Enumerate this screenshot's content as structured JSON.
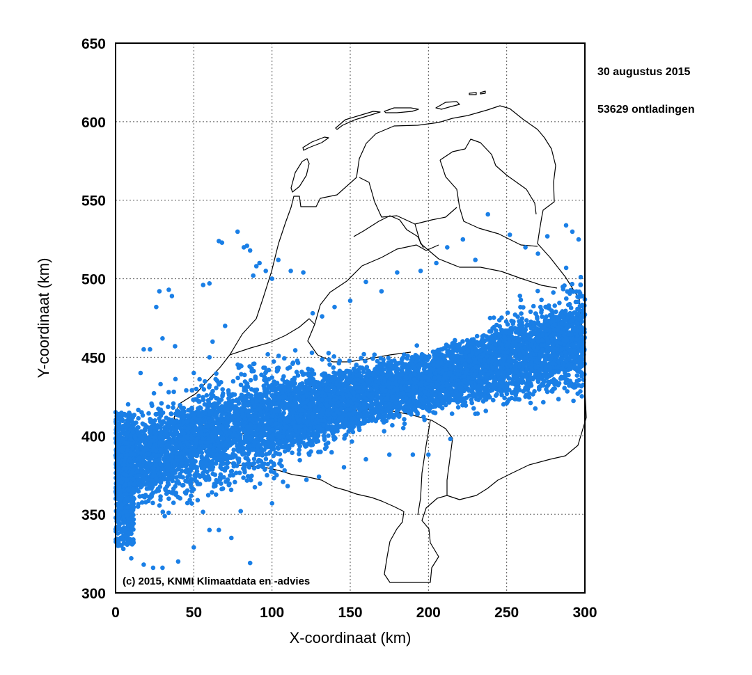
{
  "chart_data": {
    "type": "scatter",
    "title": "",
    "xlabel": "X-coordinaat (km)",
    "ylabel": "Y-coordinaat (km)",
    "xlim": [
      0,
      300
    ],
    "ylim": [
      300,
      650
    ],
    "xticks": [
      "0",
      "50",
      "100",
      "150",
      "200",
      "250",
      "300"
    ],
    "yticks": [
      "300",
      "350",
      "400",
      "450",
      "500",
      "550",
      "600",
      "650"
    ],
    "grid": true,
    "annotations": {
      "date": "30 augustus 2015",
      "count": "53629 ontladingen",
      "credit": "(c) 2015, KNMI Klimaatdata en -advies"
    },
    "series": [
      {
        "color": "#1a7fe6",
        "band_center_line": [
          [
            0,
            380
          ],
          [
            100,
            412
          ],
          [
            200,
            435
          ],
          [
            300,
            463
          ]
        ],
        "band_half_width": 28,
        "points": [
          [
            28,
            492
          ],
          [
            26,
            482
          ],
          [
            34,
            493
          ],
          [
            36,
            489
          ],
          [
            30,
            462
          ],
          [
            38,
            457
          ],
          [
            56,
            496
          ],
          [
            60,
            497
          ],
          [
            66,
            524
          ],
          [
            68,
            523
          ],
          [
            78,
            530
          ],
          [
            82,
            520
          ],
          [
            84,
            521
          ],
          [
            86,
            518
          ],
          [
            90,
            508
          ],
          [
            92,
            510
          ],
          [
            88,
            502
          ],
          [
            96,
            505
          ],
          [
            62,
            460
          ],
          [
            70,
            470
          ],
          [
            100,
            500
          ],
          [
            104,
            512
          ],
          [
            112,
            505
          ],
          [
            120,
            504
          ],
          [
            160,
            498
          ],
          [
            180,
            504
          ],
          [
            195,
            505
          ],
          [
            205,
            510
          ],
          [
            212,
            520
          ],
          [
            222,
            525
          ],
          [
            238,
            541
          ],
          [
            252,
            528
          ],
          [
            262,
            520
          ],
          [
            276,
            527
          ],
          [
            288,
            534
          ],
          [
            292,
            530
          ],
          [
            296,
            525
          ],
          [
            270,
            516
          ],
          [
            230,
            512
          ],
          [
            140,
            482
          ],
          [
            126,
            478
          ],
          [
            132,
            476
          ],
          [
            150,
            486
          ],
          [
            170,
            492
          ],
          [
            5,
            328
          ],
          [
            10,
            322
          ],
          [
            18,
            318
          ],
          [
            24,
            316
          ],
          [
            30,
            316
          ],
          [
            40,
            320
          ],
          [
            50,
            329
          ],
          [
            60,
            340
          ],
          [
            66,
            340
          ],
          [
            74,
            335
          ],
          [
            86,
            319
          ],
          [
            80,
            352
          ],
          [
            100,
            357
          ],
          [
            110,
            368
          ],
          [
            122,
            372
          ],
          [
            130,
            374
          ],
          [
            146,
            380
          ],
          [
            160,
            385
          ],
          [
            175,
            388
          ],
          [
            190,
            388
          ],
          [
            200,
            388
          ],
          [
            214,
            398
          ],
          [
            230,
            414
          ],
          [
            248,
            420
          ],
          [
            262,
            425
          ],
          [
            276,
            428
          ],
          [
            290,
            432
          ],
          [
            298,
            438
          ],
          [
            0,
            415
          ],
          [
            4,
            410
          ],
          [
            8,
            420
          ],
          [
            16,
            440
          ],
          [
            18,
            455
          ],
          [
            22,
            455
          ],
          [
            50,
            440
          ],
          [
            60,
            450
          ],
          [
            2,
            350
          ]
        ]
      }
    ]
  },
  "map": {
    "label": "Nederland kaartcontouren",
    "color": "#000000"
  }
}
